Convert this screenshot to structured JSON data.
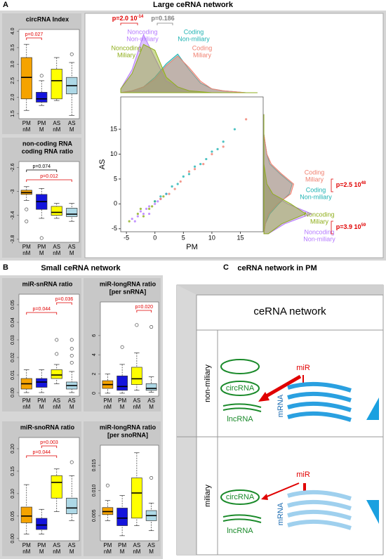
{
  "panels": [
    {
      "label": "A",
      "title": "Large ceRNA network"
    },
    {
      "label": "B",
      "title": "Small ceRNA network"
    },
    {
      "label": "C",
      "title": "ceRNA network in PM"
    }
  ],
  "chart_data": [
    {
      "type": "box",
      "title": [
        "circRNA Index"
      ],
      "categories": [
        "PM",
        "PM",
        "AS",
        "AS"
      ],
      "groups": [
        "nM",
        "M",
        "nM",
        "M"
      ],
      "colors": [
        "#f5a300",
        "#1414dc",
        "#ffff00",
        "#add8e6"
      ],
      "boxes": [
        {
          "min": 1.6,
          "q1": 1.95,
          "median": 2.6,
          "q3": 3.2,
          "max": 3.6,
          "outliers": []
        },
        {
          "min": 1.75,
          "q1": 1.85,
          "median": 1.95,
          "q3": 2.15,
          "max": 2.5,
          "outliers": [
            2.65
          ]
        },
        {
          "min": 1.9,
          "q1": 1.95,
          "median": 2.5,
          "q3": 2.85,
          "max": 3.2,
          "outliers": []
        },
        {
          "min": 1.45,
          "q1": 2.1,
          "median": 2.35,
          "q3": 2.6,
          "max": 3.05,
          "outliers": [
            3.3
          ]
        }
      ],
      "ylim": [
        1.35,
        4.05
      ],
      "yticks": [
        {
          "value": 1.5,
          "label": "1.5"
        },
        {
          "value": 2,
          "label": "2.0"
        },
        {
          "value": 2.5,
          "label": "2.5"
        },
        {
          "value": 3,
          "label": "3.0"
        },
        {
          "value": 3.5,
          "label": "3.5"
        },
        {
          "value": 4,
          "label": "4.0"
        }
      ],
      "annotations": [
        {
          "text": "p=0.027",
          "pair": [
            0,
            1
          ],
          "color": "#e00000"
        }
      ]
    },
    {
      "type": "box",
      "title": [
        "non-coding RNA",
        "coding RNA ratio"
      ],
      "categories": [
        "PM",
        "PM",
        "AS",
        "AS"
      ],
      "groups": [
        "nM",
        "M",
        "nM",
        "M"
      ],
      "colors": [
        "#f5a300",
        "#1414dc",
        "#ffff00",
        "#add8e6"
      ],
      "boxes": [
        {
          "min": -3.15,
          "q1": -3.05,
          "median": -3.02,
          "q3": -2.98,
          "max": -2.92,
          "outliers": [
            -3.3,
            -3.5
          ]
        },
        {
          "min": -3.45,
          "q1": -3.3,
          "median": -3.17,
          "q3": -3.05,
          "max": -2.95,
          "outliers": [
            -3.78
          ]
        },
        {
          "min": -3.45,
          "q1": -3.4,
          "median": -3.35,
          "q3": -3.25,
          "max": -3.2,
          "outliers": []
        },
        {
          "min": -3.5,
          "q1": -3.42,
          "median": -3.38,
          "q3": -3.28,
          "max": -3.2,
          "outliers": []
        }
      ],
      "ylim": [
        -3.85,
        -2.5
      ],
      "yticks": [
        -3.8,
        -3.4,
        -3.0,
        -2.6
      ],
      "annotations": [
        {
          "text": "p=0.074",
          "pair": [
            0,
            2
          ],
          "color": "#000000"
        },
        {
          "text": "p=0.012",
          "pair": [
            0,
            3
          ],
          "color": "#e00000"
        }
      ]
    },
    {
      "type": "scatter",
      "xlabel": "PM",
      "ylabel": "AS",
      "xlim": [
        -6,
        19
      ],
      "ylim": [
        -5.6,
        21.5
      ],
      "xticks": [
        -5,
        0,
        5,
        10,
        15
      ],
      "yticks": [
        -5,
        0,
        5,
        10,
        15
      ],
      "density_grid": [
        -6,
        -4,
        -2,
        0,
        2,
        4,
        6,
        8,
        10,
        12,
        14,
        16,
        18
      ],
      "series": [
        {
          "name": [
            "Noncoding",
            "Non-miliary"
          ],
          "color": "#b57aff",
          "x": [
            -4,
            -3,
            -2.5,
            -2,
            -1.5,
            -1,
            0,
            1,
            2,
            -3.5,
            -1,
            0.5
          ],
          "y": [
            -3,
            -2.5,
            -1.5,
            -2,
            -1,
            -0.5,
            0,
            1,
            2,
            -3.5,
            -2,
            0.5
          ],
          "density_pm": [
            0.02,
            0.12,
            0.3,
            0.18,
            0.06,
            0.03,
            0.01,
            0.005,
            0,
            0,
            0,
            0,
            0
          ],
          "density_as": [
            0.03,
            0.14,
            0.32,
            0.16,
            0.05,
            0.02,
            0.01,
            0,
            0,
            0,
            0,
            0,
            0
          ]
        },
        {
          "name": [
            "Noncoding",
            "Miliary"
          ],
          "color": "#8fae1b",
          "x": [
            -4.5,
            -3,
            -2,
            -1,
            0,
            1.5,
            -2.5,
            -0.5
          ],
          "y": [
            -3.5,
            -2,
            -2.5,
            -1,
            0.5,
            1.5,
            -1,
            -0.5
          ],
          "density_pm": [
            0.02,
            0.1,
            0.25,
            0.22,
            0.08,
            0.03,
            0.01,
            0.005,
            0,
            0,
            0,
            0,
            0
          ],
          "density_as": [
            0.03,
            0.12,
            0.28,
            0.18,
            0.06,
            0.02,
            0.01,
            0,
            0,
            0,
            0,
            0,
            0
          ]
        },
        {
          "name": [
            "Coding",
            "Non-miliary"
          ],
          "color": "#1fb3b3",
          "x": [
            0,
            1,
            2,
            3,
            4,
            5,
            6,
            7,
            8,
            9,
            10,
            11,
            12,
            14
          ],
          "y": [
            0.5,
            1.5,
            2,
            3.5,
            4,
            5.5,
            6,
            7.5,
            8,
            9,
            10.5,
            11,
            12.5,
            15
          ],
          "density_pm": [
            0,
            0.01,
            0.03,
            0.08,
            0.15,
            0.2,
            0.12,
            0.05,
            0.02,
            0.01,
            0.005,
            0,
            0
          ],
          "density_as": [
            0,
            0.01,
            0.04,
            0.1,
            0.17,
            0.19,
            0.11,
            0.04,
            0.02,
            0.01,
            0,
            0,
            0
          ]
        },
        {
          "name": [
            "Coding",
            "Miliary"
          ],
          "color": "#f08070",
          "x": [
            1,
            2.5,
            3.5,
            4.5,
            6,
            7,
            8.5,
            10,
            12,
            16
          ],
          "y": [
            1,
            2,
            3,
            4.5,
            6.5,
            7,
            8,
            10,
            11.5,
            17
          ],
          "density_pm": [
            0,
            0.01,
            0.03,
            0.07,
            0.14,
            0.19,
            0.13,
            0.06,
            0.02,
            0.01,
            0.005,
            0,
            0
          ],
          "density_as": [
            0,
            0.01,
            0.03,
            0.09,
            0.18,
            0.2,
            0.12,
            0.05,
            0.02,
            0.01,
            0,
            0,
            0
          ]
        }
      ],
      "annotations": [
        {
          "text": "p=2.0 10",
          "exp": "-14",
          "color": "#e00000"
        },
        {
          "text": "p=0.186",
          "exp": "",
          "color": "#808080"
        },
        {
          "text": "p=2.5 10",
          "exp": "48",
          "color": "#e00000"
        },
        {
          "text": "p=3.9 10",
          "exp": "59",
          "color": "#e00000"
        }
      ]
    },
    {
      "type": "box",
      "title": [
        "miR-snRNA ratio"
      ],
      "categories": [
        "PM",
        "PM",
        "AS",
        "AS"
      ],
      "groups": [
        "nM",
        "M",
        "nM",
        "M"
      ],
      "colors": [
        "#f5a300",
        "#1414dc",
        "#ffff00",
        "#add8e6"
      ],
      "boxes": [
        {
          "min": 0,
          "q1": 0.002,
          "median": 0.005,
          "q3": 0.008,
          "max": 0.013,
          "outliers": []
        },
        {
          "min": 0,
          "q1": 0.003,
          "median": 0.006,
          "q3": 0.008,
          "max": 0.013,
          "outliers": []
        },
        {
          "min": 0.005,
          "q1": 0.008,
          "median": 0.01,
          "q3": 0.013,
          "max": 0.016,
          "outliers": [
            0.022,
            0.03
          ]
        },
        {
          "min": 0,
          "q1": 0.002,
          "median": 0.004,
          "q3": 0.006,
          "max": 0.012,
          "outliers": [
            0.017,
            0.021,
            0.025,
            0.03
          ]
        }
      ],
      "ylim": [
        -0.002,
        0.056
      ],
      "yticks": [
        {
          "value": 0,
          "label": "0.00"
        },
        {
          "value": 0.01,
          "label": "0.01"
        },
        {
          "value": 0.02,
          "label": "0.02"
        },
        {
          "value": 0.03,
          "label": "0.03"
        },
        {
          "value": 0.04,
          "label": "0.04"
        },
        {
          "value": 0.05,
          "label": "0.05"
        }
      ],
      "annotations": [
        {
          "text": "p=0.036",
          "pair": [
            2,
            3
          ],
          "color": "#e00000"
        },
        {
          "text": "p=0.044",
          "pair": [
            0,
            2
          ],
          "color": "#e00000"
        }
      ]
    },
    {
      "type": "box",
      "title": [
        "miR-longRNA ratio",
        "[per snRNA]"
      ],
      "categories": [
        "PM",
        "PM",
        "AS",
        "AS"
      ],
      "groups": [
        "nM",
        "M",
        "nM",
        "M"
      ],
      "colors": [
        "#f5a300",
        "#1414dc",
        "#ffff00",
        "#add8e6"
      ],
      "boxes": [
        {
          "min": 0,
          "q1": 0.5,
          "median": 0.9,
          "q3": 1.3,
          "max": 2,
          "outliers": []
        },
        {
          "min": 0,
          "q1": 0.3,
          "median": 0.7,
          "q3": 1.8,
          "max": 3,
          "outliers": [
            4.8
          ]
        },
        {
          "min": 0.3,
          "q1": 0.9,
          "median": 1.5,
          "q3": 2.7,
          "max": 4.2,
          "outliers": [
            7.1
          ]
        },
        {
          "min": 0.1,
          "q1": 0.3,
          "median": 0.5,
          "q3": 1,
          "max": 1.7,
          "outliers": [
            6.9
          ]
        }
      ],
      "ylim": [
        -0.3,
        9.5
      ],
      "yticks": [
        0,
        2,
        4,
        6
      ],
      "annotations": [
        {
          "text": "p=0.020",
          "pair": [
            2,
            3
          ],
          "color": "#e00000"
        }
      ]
    },
    {
      "type": "box",
      "title": [
        "miR-snoRNA ratio"
      ],
      "categories": [
        "PM",
        "PM",
        "AS",
        "AS"
      ],
      "groups": [
        "nM",
        "M",
        "nM",
        "M"
      ],
      "colors": [
        "#f5a300",
        "#1414dc",
        "#ffff00",
        "#add8e6"
      ],
      "boxes": [
        {
          "min": 0.01,
          "q1": 0.035,
          "median": 0.05,
          "q3": 0.07,
          "max": 0.12,
          "outliers": []
        },
        {
          "min": 0.01,
          "q1": 0.02,
          "median": 0.03,
          "q3": 0.045,
          "max": 0.065,
          "outliers": []
        },
        {
          "min": 0.06,
          "q1": 0.09,
          "median": 0.125,
          "q3": 0.14,
          "max": 0.155,
          "outliers": []
        },
        {
          "min": 0.04,
          "q1": 0.055,
          "median": 0.068,
          "q3": 0.09,
          "max": 0.14,
          "outliers": [
            0.17
          ]
        }
      ],
      "ylim": [
        -0.005,
        0.225
      ],
      "yticks": [
        {
          "value": 0,
          "label": "0.00"
        },
        {
          "value": 0.05,
          "label": "0.05"
        },
        {
          "value": 0.1,
          "label": "0.10"
        },
        {
          "value": 0.15,
          "label": "0.15"
        },
        {
          "value": 0.2,
          "label": "0.20"
        }
      ],
      "annotations": [
        {
          "text": "p=0.003",
          "pair": [
            1,
            2
          ],
          "color": "#e00000"
        },
        {
          "text": "p=0.044",
          "pair": [
            0,
            2
          ],
          "color": "#e00000"
        }
      ]
    },
    {
      "type": "box",
      "title": [
        "miR-longRNA ratio",
        "[per snoRNA]"
      ],
      "categories": [
        "PM",
        "PM",
        "AS",
        "AS"
      ],
      "groups": [
        "nM",
        "M",
        "nM",
        "M"
      ],
      "colors": [
        "#f5a300",
        "#1414dc",
        "#ffff00",
        "#add8e6"
      ],
      "boxes": [
        {
          "min": 0.004,
          "q1": 0.0052,
          "median": 0.0058,
          "q3": 0.0066,
          "max": 0.008,
          "outliers": [
            0.011
          ]
        },
        {
          "min": 0.001,
          "q1": 0.003,
          "median": 0.0045,
          "q3": 0.0065,
          "max": 0.009,
          "outliers": []
        },
        {
          "min": 0.003,
          "q1": 0.0045,
          "median": 0.0095,
          "q3": 0.0125,
          "max": 0.0175,
          "outliers": []
        },
        {
          "min": 0.002,
          "q1": 0.004,
          "median": 0.005,
          "q3": 0.006,
          "max": 0.0075,
          "outliers": [
            0.0125
          ]
        }
      ],
      "ylim": [
        0,
        0.019
      ],
      "yticks": [
        {
          "value": 0.005,
          "label": "0.005"
        },
        {
          "value": 0.01,
          "label": "0.010"
        },
        {
          "value": 0.015,
          "label": "0.015"
        }
      ],
      "annotations": []
    }
  ],
  "diagram": {
    "header": "ceRNA network",
    "rows": [
      {
        "label": "non-miliary",
        "mir": "miR",
        "circ": "circRNA",
        "lnc": "lncRNA",
        "mrna": "mRNA"
      },
      {
        "label": "miliary",
        "mir": "miR",
        "circ": "circRNA",
        "lnc": "lncRNA",
        "mrna": "mRNA"
      }
    ]
  }
}
